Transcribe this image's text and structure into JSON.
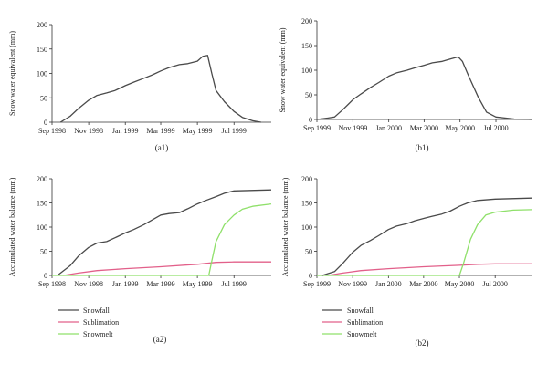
{
  "colors": {
    "snowfall": "#4a4a4a",
    "sublimation": "#e2608a",
    "snowmelt": "#8fe06a",
    "axis": "#333333",
    "swe": "#4a4a4a"
  },
  "legend": [
    {
      "key": "snowfall",
      "label": "Snowfall"
    },
    {
      "key": "sublimation",
      "label": "Sublimation"
    },
    {
      "key": "snowmelt",
      "label": "Snowmelt"
    }
  ],
  "chart_data": [
    {
      "id": "a1",
      "type": "line",
      "caption": "(a1)",
      "ylabel": "Snow water equivalent (mm)",
      "ylim": [
        0,
        200
      ],
      "yticks": [
        0,
        50,
        100,
        150,
        200
      ],
      "xlim": [
        "1998-09-01",
        "1999-09-01"
      ],
      "xticks": [
        "1998-09-01",
        "1998-11-01",
        "1999-01-01",
        "1999-03-01",
        "1999-05-01",
        "1999-07-01"
      ],
      "xtick_labels": [
        "Sep 1998",
        "Nov 1998",
        "Jan 1999",
        "Mar 1999",
        "May 1999",
        "Jul 1999"
      ],
      "series": [
        {
          "key": "swe",
          "points": [
            [
              "1998-09-15",
              0
            ],
            [
              "1998-10-01",
              12
            ],
            [
              "1998-10-15",
              28
            ],
            [
              "1998-11-01",
              45
            ],
            [
              "1998-11-15",
              55
            ],
            [
              "1998-12-01",
              60
            ],
            [
              "1998-12-15",
              65
            ],
            [
              "1999-01-01",
              75
            ],
            [
              "1999-01-15",
              82
            ],
            [
              "1999-02-01",
              90
            ],
            [
              "1999-02-15",
              97
            ],
            [
              "1999-03-01",
              105
            ],
            [
              "1999-03-15",
              112
            ],
            [
              "1999-04-01",
              118
            ],
            [
              "1999-04-15",
              120
            ],
            [
              "1999-05-01",
              125
            ],
            [
              "1999-05-10",
              135
            ],
            [
              "1999-05-18",
              137
            ],
            [
              "1999-05-25",
              100
            ],
            [
              "1999-06-01",
              65
            ],
            [
              "1999-06-15",
              42
            ],
            [
              "1999-07-01",
              22
            ],
            [
              "1999-07-15",
              10
            ],
            [
              "1999-08-01",
              3
            ],
            [
              "1999-08-15",
              0
            ]
          ]
        }
      ]
    },
    {
      "id": "b1",
      "type": "line",
      "caption": "(b1)",
      "ylabel": "Snow water equivalent (mm)",
      "ylim": [
        0,
        200
      ],
      "yticks": [
        0,
        50,
        100,
        150,
        200
      ],
      "xlim": [
        "1999-09-01",
        "2000-09-01"
      ],
      "xticks": [
        "1999-09-01",
        "1999-11-01",
        "2000-01-01",
        "2000-03-01",
        "2000-05-01",
        "2000-07-01"
      ],
      "xtick_labels": [
        "Sep 1999",
        "Nov 1999",
        "Jan 2000",
        "Mar 2000",
        "May 2000",
        "Jul 2000"
      ],
      "series": [
        {
          "key": "swe",
          "points": [
            [
              "1999-09-01",
              0
            ],
            [
              "1999-09-20",
              3
            ],
            [
              "1999-10-01",
              5
            ],
            [
              "1999-10-15",
              20
            ],
            [
              "1999-11-01",
              40
            ],
            [
              "1999-11-15",
              52
            ],
            [
              "1999-12-01",
              65
            ],
            [
              "1999-12-15",
              75
            ],
            [
              "2000-01-01",
              88
            ],
            [
              "2000-01-15",
              95
            ],
            [
              "2000-02-01",
              100
            ],
            [
              "2000-02-15",
              105
            ],
            [
              "2000-03-01",
              110
            ],
            [
              "2000-03-15",
              115
            ],
            [
              "2000-04-01",
              118
            ],
            [
              "2000-04-15",
              123
            ],
            [
              "2000-04-28",
              127
            ],
            [
              "2000-05-05",
              118
            ],
            [
              "2000-05-15",
              90
            ],
            [
              "2000-06-01",
              45
            ],
            [
              "2000-06-15",
              15
            ],
            [
              "2000-07-01",
              5
            ],
            [
              "2000-08-01",
              1
            ],
            [
              "2000-09-01",
              0
            ]
          ]
        }
      ]
    },
    {
      "id": "a2",
      "type": "line",
      "caption": "(a2)",
      "ylabel": "Accumulated water balance (mm)",
      "ylim": [
        0,
        200
      ],
      "yticks": [
        0,
        50,
        100,
        150,
        200
      ],
      "xlim": [
        "1998-09-01",
        "1999-09-01"
      ],
      "xticks": [
        "1998-09-01",
        "1998-11-01",
        "1999-01-01",
        "1999-03-01",
        "1999-05-01",
        "1999-07-01"
      ],
      "xtick_labels": [
        "Sep 1998",
        "Nov 1998",
        "Jan 1999",
        "Mar 1999",
        "May 1999",
        "Jul 1999"
      ],
      "series": [
        {
          "key": "snowfall",
          "points": [
            [
              "1998-09-10",
              0
            ],
            [
              "1998-10-01",
              20
            ],
            [
              "1998-10-15",
              40
            ],
            [
              "1998-11-01",
              58
            ],
            [
              "1998-11-15",
              67
            ],
            [
              "1998-12-01",
              70
            ],
            [
              "1998-12-15",
              78
            ],
            [
              "1999-01-01",
              88
            ],
            [
              "1999-01-15",
              95
            ],
            [
              "1999-02-01",
              105
            ],
            [
              "1999-02-15",
              115
            ],
            [
              "1999-03-01",
              125
            ],
            [
              "1999-03-15",
              128
            ],
            [
              "1999-04-01",
              130
            ],
            [
              "1999-04-15",
              138
            ],
            [
              "1999-05-01",
              148
            ],
            [
              "1999-05-15",
              155
            ],
            [
              "1999-06-01",
              163
            ],
            [
              "1999-06-15",
              170
            ],
            [
              "1999-07-01",
              175
            ],
            [
              "1999-09-01",
              177
            ]
          ]
        },
        {
          "key": "sublimation",
          "points": [
            [
              "1998-09-20",
              0
            ],
            [
              "1998-10-15",
              5
            ],
            [
              "1998-11-15",
              10
            ],
            [
              "1999-01-01",
              14
            ],
            [
              "1999-03-01",
              18
            ],
            [
              "1999-05-01",
              23
            ],
            [
              "1999-06-01",
              27
            ],
            [
              "1999-07-01",
              28
            ],
            [
              "1999-09-01",
              28
            ]
          ]
        },
        {
          "key": "snowmelt",
          "points": [
            [
              "1998-09-01",
              0
            ],
            [
              "1999-05-20",
              0
            ],
            [
              "1999-05-25",
              30
            ],
            [
              "1999-06-01",
              70
            ],
            [
              "1999-06-15",
              105
            ],
            [
              "1999-07-01",
              125
            ],
            [
              "1999-07-15",
              137
            ],
            [
              "1999-08-01",
              143
            ],
            [
              "1999-09-01",
              148
            ]
          ]
        }
      ]
    },
    {
      "id": "b2",
      "type": "line",
      "caption": "(b2)",
      "ylabel": "Accumulated water balance (mm)",
      "ylim": [
        0,
        200
      ],
      "yticks": [
        0,
        50,
        100,
        150,
        200
      ],
      "xlim": [
        "1999-09-01",
        "2000-09-01"
      ],
      "xticks": [
        "1999-09-01",
        "1999-11-01",
        "2000-01-01",
        "2000-03-01",
        "2000-05-01",
        "2000-07-01"
      ],
      "xtick_labels": [
        "Sep 1999",
        "Nov 1999",
        "Jan 2000",
        "Mar 2000",
        "May 2000",
        "Jul 2000"
      ],
      "series": [
        {
          "key": "snowfall",
          "points": [
            [
              "1999-09-10",
              0
            ],
            [
              "1999-10-01",
              8
            ],
            [
              "1999-10-15",
              25
            ],
            [
              "1999-11-01",
              48
            ],
            [
              "1999-11-15",
              62
            ],
            [
              "1999-12-01",
              72
            ],
            [
              "1999-12-15",
              82
            ],
            [
              "2000-01-01",
              95
            ],
            [
              "2000-01-15",
              102
            ],
            [
              "2000-02-01",
              107
            ],
            [
              "2000-02-15",
              113
            ],
            [
              "2000-03-01",
              118
            ],
            [
              "2000-03-15",
              122
            ],
            [
              "2000-04-01",
              127
            ],
            [
              "2000-04-15",
              133
            ],
            [
              "2000-05-01",
              143
            ],
            [
              "2000-05-15",
              150
            ],
            [
              "2000-06-01",
              155
            ],
            [
              "2000-07-01",
              158
            ],
            [
              "2000-09-01",
              160
            ]
          ]
        },
        {
          "key": "sublimation",
          "points": [
            [
              "1999-09-20",
              0
            ],
            [
              "1999-10-15",
              5
            ],
            [
              "1999-11-15",
              10
            ],
            [
              "2000-01-01",
              14
            ],
            [
              "2000-03-01",
              18
            ],
            [
              "2000-05-01",
              21
            ],
            [
              "2000-06-01",
              23
            ],
            [
              "2000-07-01",
              24
            ],
            [
              "2000-09-01",
              24
            ]
          ]
        },
        {
          "key": "snowmelt",
          "points": [
            [
              "1999-09-01",
              0
            ],
            [
              "2000-05-01",
              0
            ],
            [
              "2000-05-08",
              25
            ],
            [
              "2000-05-20",
              75
            ],
            [
              "2000-06-01",
              105
            ],
            [
              "2000-06-15",
              125
            ],
            [
              "2000-07-01",
              131
            ],
            [
              "2000-08-01",
              135
            ],
            [
              "2000-09-01",
              136
            ]
          ]
        }
      ]
    }
  ]
}
